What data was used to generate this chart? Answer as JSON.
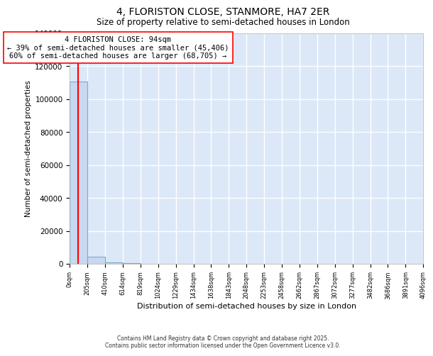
{
  "title": "4, FLORISTON CLOSE, STANMORE, HA7 2ER",
  "subtitle": "Size of property relative to semi-detached houses in London",
  "xlabel": "Distribution of semi-detached houses by size in London",
  "ylabel": "Number of semi-detached properties",
  "property_size": 94,
  "annotation_text": "4 FLORISTON CLOSE: 94sqm\n← 39% of semi-detached houses are smaller (45,406)\n60% of semi-detached houses are larger (68,705) →",
  "bar_edges": [
    0,
    205,
    410,
    614,
    819,
    1024,
    1229,
    1434,
    1638,
    1843,
    2048,
    2253,
    2458,
    2662,
    2867,
    3072,
    3277,
    3482,
    3686,
    3891,
    4096
  ],
  "bar_heights": [
    110500,
    4500,
    700,
    300,
    180,
    120,
    90,
    70,
    55,
    45,
    38,
    33,
    28,
    24,
    21,
    18,
    16,
    14,
    12,
    11
  ],
  "bar_color": "#c8d8f0",
  "bar_edge_color": "#7aaad0",
  "red_line_x": 94,
  "ylim": [
    0,
    140000
  ],
  "yticks": [
    0,
    20000,
    40000,
    60000,
    80000,
    100000,
    120000,
    140000
  ],
  "xtick_labels": [
    "0sqm",
    "205sqm",
    "410sqm",
    "614sqm",
    "819sqm",
    "1024sqm",
    "1229sqm",
    "1434sqm",
    "1638sqm",
    "1843sqm",
    "2048sqm",
    "2253sqm",
    "2458sqm",
    "2662sqm",
    "2867sqm",
    "3072sqm",
    "3277sqm",
    "3482sqm",
    "3686sqm",
    "3891sqm",
    "4096sqm"
  ],
  "footnote": "Contains HM Land Registry data © Crown copyright and database right 2025.\nContains public sector information licensed under the Open Government Licence v3.0.",
  "plot_bg_color": "#dce8f8",
  "fig_bg_color": "#ffffff",
  "grid_color": "#ffffff",
  "annotation_fontsize": 7.5,
  "title_fontsize": 10,
  "subtitle_fontsize": 8.5
}
